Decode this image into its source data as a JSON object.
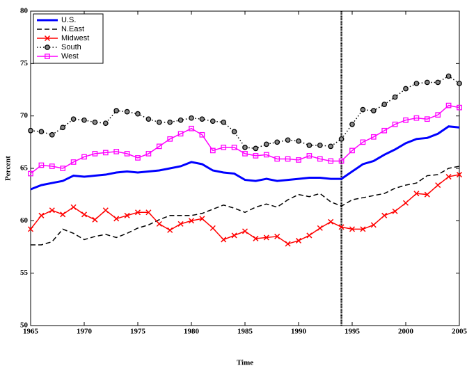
{
  "chart_data": {
    "type": "line",
    "x_label": "Time",
    "y_label": "Percent",
    "x": [
      1965,
      1966,
      1967,
      1968,
      1969,
      1970,
      1971,
      1972,
      1973,
      1974,
      1975,
      1976,
      1977,
      1978,
      1979,
      1980,
      1981,
      1982,
      1983,
      1984,
      1985,
      1986,
      1987,
      1988,
      1989,
      1990,
      1991,
      1992,
      1993,
      1994,
      1995,
      1996,
      1997,
      1998,
      1999,
      2000,
      2001,
      2002,
      2003,
      2004,
      2005
    ],
    "xlim": [
      1965,
      2005
    ],
    "xticks": [
      1965,
      1970,
      1975,
      1980,
      1985,
      1990,
      1995,
      2000,
      2005
    ],
    "ylim": [
      50,
      80
    ],
    "yticks": [
      50,
      55,
      60,
      65,
      70,
      75,
      80
    ],
    "vline": 1994,
    "legend": "upper left",
    "series": [
      {
        "name": "U.S.",
        "color": "#0000ff",
        "dash": "solid",
        "marker": "none",
        "width": 3,
        "values": [
          63.0,
          63.4,
          63.6,
          63.8,
          64.3,
          64.2,
          64.3,
          64.4,
          64.6,
          64.7,
          64.6,
          64.7,
          64.8,
          65.0,
          65.2,
          65.6,
          65.4,
          64.8,
          64.6,
          64.5,
          63.9,
          63.8,
          64.0,
          63.8,
          63.9,
          64.0,
          64.1,
          64.1,
          64.0,
          64.0,
          64.7,
          65.4,
          65.7,
          66.3,
          66.8,
          67.4,
          67.8,
          67.9,
          68.3,
          69.0,
          68.9
        ]
      },
      {
        "name": "N.East",
        "color": "#000000",
        "dash": "dashed",
        "marker": "none",
        "width": 1.5,
        "values": [
          57.7,
          57.7,
          58.0,
          59.2,
          58.8,
          58.2,
          58.5,
          58.7,
          58.4,
          58.8,
          59.3,
          59.6,
          60.1,
          60.5,
          60.5,
          60.5,
          60.7,
          61.1,
          61.5,
          61.2,
          60.8,
          61.3,
          61.6,
          61.3,
          62.0,
          62.5,
          62.3,
          62.6,
          61.8,
          61.4,
          62.0,
          62.2,
          62.4,
          62.6,
          63.1,
          63.4,
          63.6,
          64.3,
          64.4,
          65.0,
          65.2
        ]
      },
      {
        "name": "Midwest",
        "color": "#ff0000",
        "dash": "solid",
        "marker": "x",
        "width": 1.5,
        "values": [
          59.2,
          60.5,
          61.0,
          60.6,
          61.3,
          60.6,
          60.1,
          61.0,
          60.2,
          60.5,
          60.8,
          60.8,
          59.7,
          59.1,
          59.7,
          60.0,
          60.2,
          59.3,
          58.2,
          58.6,
          59.0,
          58.3,
          58.4,
          58.5,
          57.8,
          58.1,
          58.6,
          59.3,
          59.9,
          59.4,
          59.2,
          59.2,
          59.6,
          60.5,
          60.9,
          61.7,
          62.6,
          62.5,
          63.4,
          64.2,
          64.4
        ]
      },
      {
        "name": "South",
        "color": "#000000",
        "dash": "dotted",
        "marker": "circle",
        "width": 1.5,
        "values": [
          68.6,
          68.5,
          68.2,
          68.9,
          69.7,
          69.6,
          69.4,
          69.3,
          70.5,
          70.4,
          70.2,
          69.7,
          69.4,
          69.4,
          69.6,
          69.8,
          69.7,
          69.5,
          69.4,
          68.5,
          67.0,
          66.9,
          67.3,
          67.5,
          67.7,
          67.6,
          67.2,
          67.2,
          67.1,
          67.8,
          69.2,
          70.6,
          70.5,
          71.1,
          71.8,
          72.6,
          73.1,
          73.2,
          73.2,
          73.8,
          73.1
        ]
      },
      {
        "name": "West",
        "color": "#ff00ff",
        "dash": "solid",
        "marker": "square",
        "width": 1.5,
        "values": [
          64.5,
          65.3,
          65.2,
          65.0,
          65.6,
          66.1,
          66.4,
          66.5,
          66.6,
          66.4,
          66.0,
          66.4,
          67.1,
          67.8,
          68.3,
          68.8,
          68.2,
          66.7,
          67.0,
          67.0,
          66.4,
          66.2,
          66.3,
          65.9,
          65.9,
          65.8,
          66.2,
          65.9,
          65.7,
          65.7,
          66.7,
          67.5,
          68.0,
          68.6,
          69.2,
          69.6,
          69.8,
          69.7,
          70.1,
          71.0,
          70.8
        ]
      }
    ]
  }
}
